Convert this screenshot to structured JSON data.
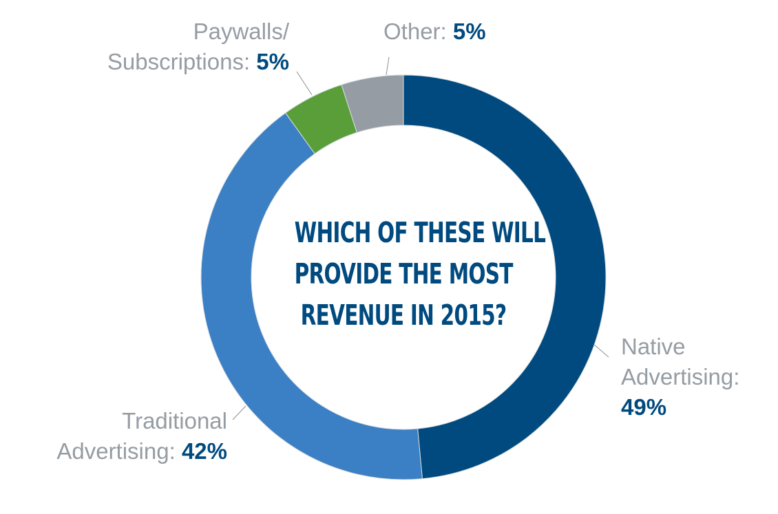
{
  "chart_data": {
    "type": "pie",
    "variant": "donut",
    "title": "WHICH OF THESE WILL PROVIDE THE MOST REVENUE IN 2015?",
    "title_lines": [
      "WHICH OF THESE WILL",
      "PROVIDE THE MOST",
      "REVENUE IN 2015?"
    ],
    "start_angle": "12 o'clock",
    "direction": "clockwise",
    "slices": [
      {
        "name": "Native Advertising",
        "value": 49,
        "label_lines": [
          "Native",
          "Advertising:"
        ],
        "pct_text": "49%",
        "color": "#004a7f",
        "label_position": "right"
      },
      {
        "name": "Traditional Advertising",
        "value": 42,
        "label_lines": [
          "Traditional",
          "Advertising:"
        ],
        "pct_text": "42%",
        "color": "#3b7fc4",
        "label_position": "bottom-left"
      },
      {
        "name": "Paywalls/Subscriptions",
        "value": 5,
        "label_lines": [
          "Paywalls/",
          "Subscriptions:"
        ],
        "pct_text": "5%",
        "color": "#5a9e3a",
        "label_position": "top-left"
      },
      {
        "name": "Other",
        "value": 5,
        "label_lines": [
          "Other:"
        ],
        "pct_text": "5%",
        "color": "#959ca3",
        "label_position": "top"
      }
    ],
    "label_color": "#959ca3",
    "value_color": "#004a7f",
    "legend": "none"
  }
}
